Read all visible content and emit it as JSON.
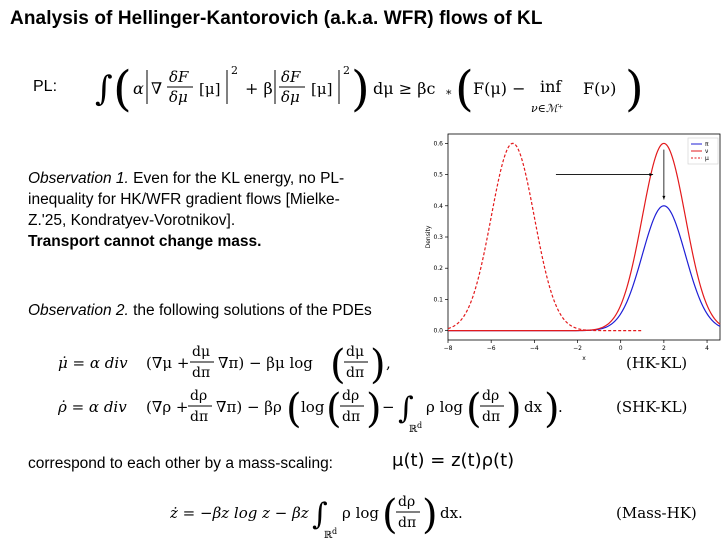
{
  "title": "Analysis of Hellinger-Kantorovich (a.k.a. WFR) flows of KL",
  "pl": {
    "label": "PL:",
    "frac_num": "δF",
    "frac_den": "δμ",
    "alpha": "α",
    "nabla": "∇",
    "mu_bracket": "[μ]",
    "plus_beta": "+ β",
    "sq": "2",
    "dmu_geq": "dμ ≥ βc",
    "cstar": "*",
    "F_mu": "F(μ) −",
    "inf": "inf",
    "inf_sub": "ν∈ℳ⁺",
    "F_nu": "F(ν)"
  },
  "obs1": {
    "label": "Observation 1.",
    "line1_rest": " Even for the KL energy, no PL-",
    "line2": "inequality for HK/WFR gradient flows [Mielke-",
    "line3": "Z.'25, Kondratyev-Vorotnikov].",
    "line4": "Transport cannot change mass."
  },
  "obs2": {
    "label": "Observation 2.",
    "rest": " the following solutions of the PDEs"
  },
  "eq_hk": {
    "lhs": "μ̇ = α div",
    "t1": "(∇μ +",
    "num": "dμ",
    "den": "dπ",
    "t2": "∇π) − βμ log",
    "tag": "(HK-KL)"
  },
  "eq_shk": {
    "lhs": "ρ̇ = α div",
    "t1": "(∇ρ +",
    "num": "dρ",
    "den": "dπ",
    "t2": "∇π) − βρ",
    "log": "log",
    "minus": "−",
    "rho_log": "ρ log",
    "dx": "dx",
    "sub": "ℝ",
    "subd": "d",
    "tag": "(SHK-KL)"
  },
  "corr": {
    "text": "correspond to each other by a mass-scaling:",
    "math": "μ(t) = z(t)ρ(t)"
  },
  "eq_mass": {
    "lhs": "ż = −βz log z − βz",
    "rho_log": "ρ log",
    "num": "dρ",
    "den": "dπ",
    "dx": "dx.",
    "sub": "ℝ",
    "subd": "d",
    "tag": "(Mass-HK)"
  },
  "chart_data": {
    "type": "line",
    "xlabel": "x",
    "ylabel": "Density",
    "xlim": [
      -8,
      4.6
    ],
    "ylim": [
      -0.03,
      0.63
    ],
    "xticks": [
      -8,
      -6,
      -4,
      -2,
      0,
      2,
      4
    ],
    "yticks": [
      0.0,
      0.1,
      0.2,
      0.3,
      0.4,
      0.5,
      0.6
    ],
    "legend_position": "top-right",
    "series": [
      {
        "name": "π",
        "color": "#1f1fd6",
        "style": "solid",
        "mean": 2,
        "std": 1,
        "peak": 0.4,
        "domain": [
          -8,
          4.6
        ]
      },
      {
        "name": "ν",
        "color": "#e31a1c",
        "style": "solid",
        "mean": 2,
        "std": 1,
        "peak": 0.6,
        "domain": [
          -8,
          4.6
        ]
      },
      {
        "name": "μ",
        "color": "#e31a1c",
        "style": "dashed",
        "mean": -5,
        "std": 1,
        "peak": 0.6,
        "domain": [
          -8,
          1
        ]
      }
    ],
    "annotations": [
      {
        "type": "arrow",
        "from": [
          -3,
          0.5
        ],
        "to": [
          1.5,
          0.5
        ]
      },
      {
        "type": "arrow",
        "from": [
          2,
          0.58
        ],
        "to": [
          2,
          0.42
        ]
      }
    ]
  }
}
